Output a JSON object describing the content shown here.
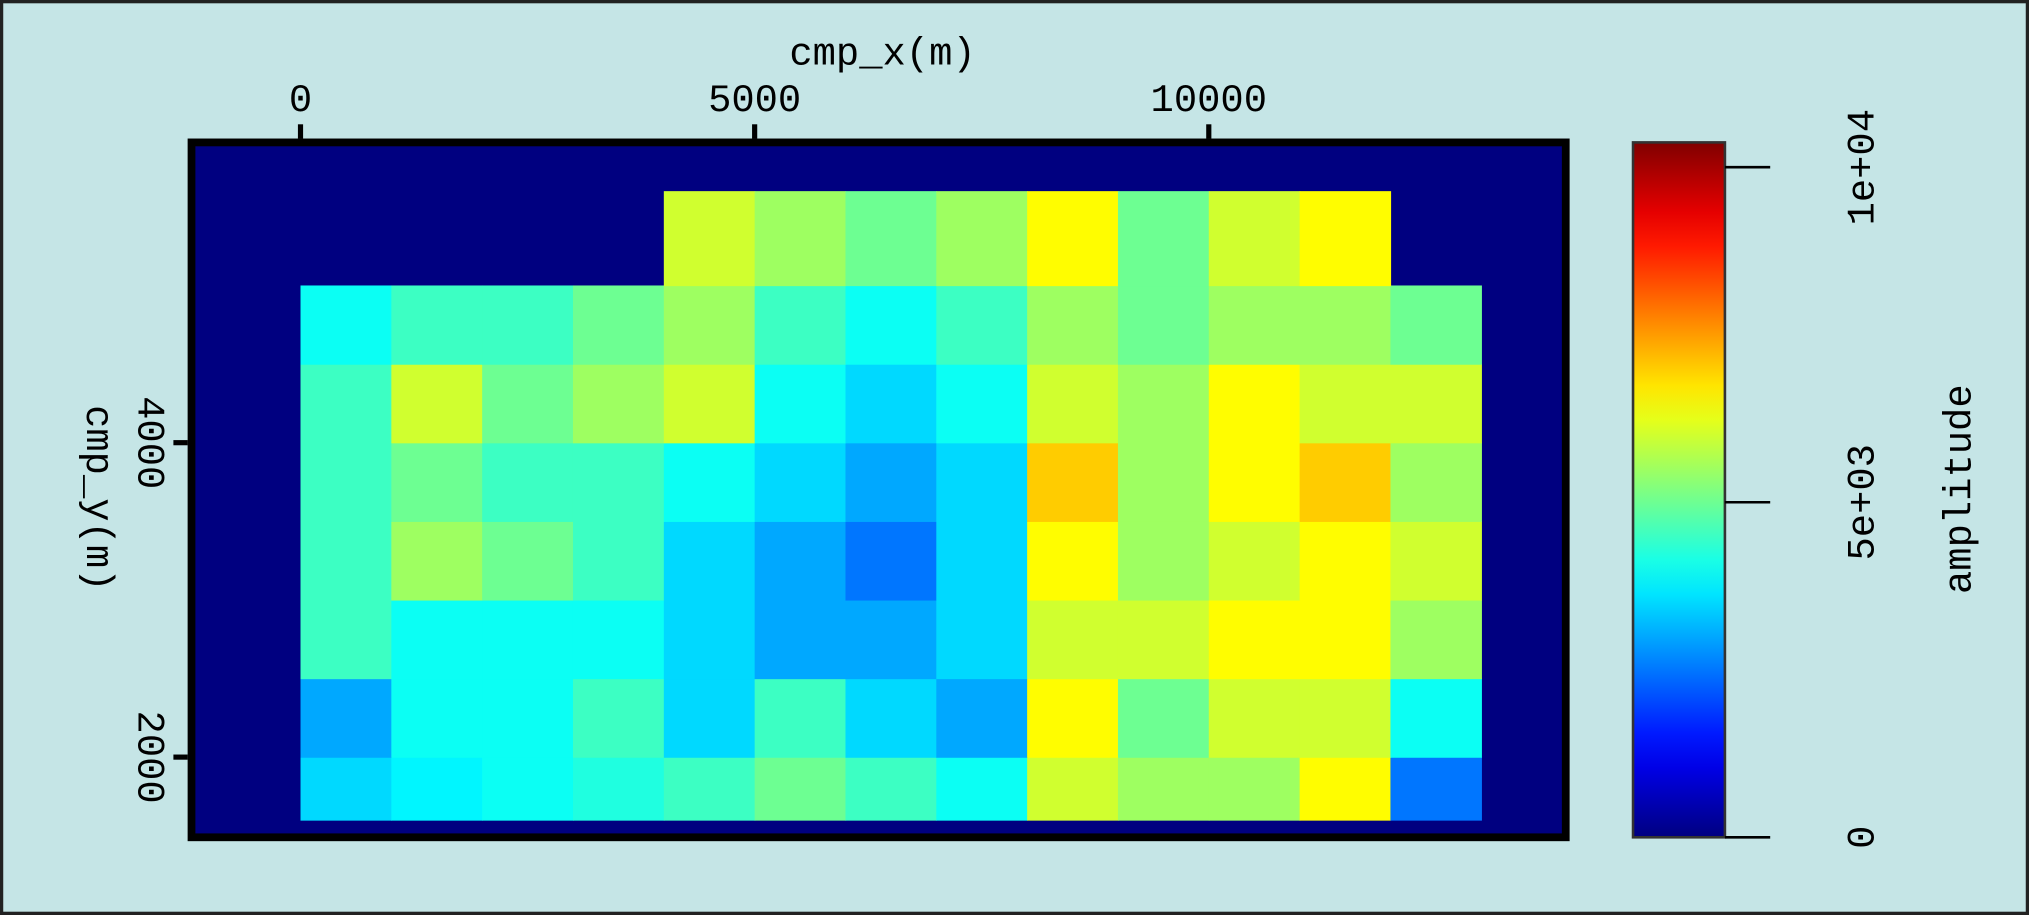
{
  "chart_data": {
    "type": "heatmap",
    "xlabel": "cmp_x(m)",
    "ylabel": "cmp_y(m)",
    "colorbar_label": "amplitude",
    "colormap": "jet",
    "xlim": [
      -1200,
      13930
    ],
    "xticks": [
      0,
      5000,
      10000
    ],
    "ylim": [
      1490,
      5910
    ],
    "yticks": [
      2000,
      4000
    ],
    "xbins": [
      0,
      1000,
      2000,
      3000,
      4000,
      5000,
      6000,
      7000,
      8000,
      9000,
      10000,
      11000,
      12000,
      13000
    ],
    "ybins": [
      1600,
      2000,
      2500,
      3000,
      3500,
      4000,
      4500,
      5000,
      5600
    ],
    "values": [
      [
        3500,
        3800,
        4000,
        4200,
        4500,
        5000,
        4500,
        4000,
        6000,
        5500,
        5500,
        6500,
        2500
      ],
      [
        3000,
        4000,
        4000,
        4500,
        3500,
        4500,
        3500,
        3000,
        6500,
        5000,
        6000,
        6000,
        4000
      ],
      [
        4500,
        4000,
        4000,
        4000,
        3500,
        3000,
        3000,
        3500,
        6000,
        6000,
        6500,
        6500,
        5500
      ],
      [
        4500,
        5500,
        5000,
        4500,
        3500,
        3000,
        2500,
        3500,
        6500,
        5500,
        6000,
        6500,
        6000
      ],
      [
        4500,
        5000,
        4500,
        4500,
        4000,
        3500,
        3000,
        3500,
        7000,
        5500,
        6500,
        7000,
        5500
      ],
      [
        4500,
        6000,
        5000,
        5500,
        6000,
        4000,
        3500,
        4000,
        6000,
        5500,
        6500,
        6000,
        6000
      ],
      [
        4000,
        4500,
        4500,
        5000,
        5500,
        4500,
        4000,
        4500,
        5500,
        5000,
        5500,
        5500,
        5000
      ],
      [
        null,
        null,
        null,
        null,
        6000,
        5500,
        5000,
        5500,
        6500,
        5000,
        6000,
        6500,
        null
      ]
    ],
    "clim": [
      0,
      10370
    ],
    "cticks": [
      0,
      {
        "value": 5000,
        "label": "5e+03"
      },
      {
        "value": 10000,
        "label": "1e+04"
      }
    ]
  }
}
